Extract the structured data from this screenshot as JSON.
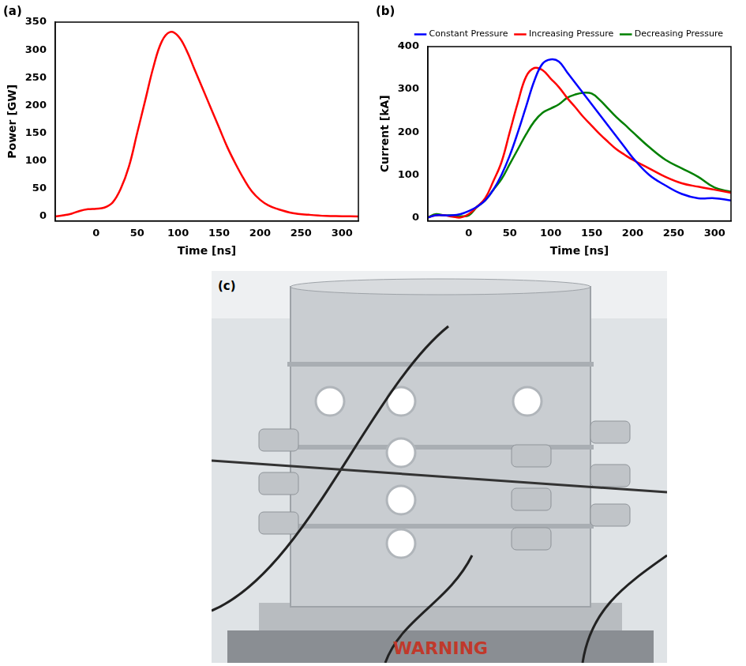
{
  "chart_data": [
    {
      "type": "line",
      "panel_label": "(a)",
      "x_label": "Time [ns]",
      "y_label": "Power [GW]",
      "x": [
        -50,
        -40,
        -30,
        -20,
        -10,
        0,
        10,
        20,
        30,
        40,
        50,
        60,
        70,
        80,
        90,
        100,
        110,
        120,
        130,
        140,
        150,
        160,
        170,
        180,
        190,
        200,
        210,
        220,
        240,
        260,
        280,
        300,
        320
      ],
      "series": [
        {
          "name": "Power",
          "color": "#ff0000",
          "values": [
            0,
            2,
            5,
            10,
            13,
            14,
            16,
            25,
            50,
            90,
            150,
            210,
            270,
            315,
            332,
            325,
            300,
            265,
            230,
            195,
            160,
            125,
            95,
            68,
            45,
            30,
            20,
            14,
            6,
            3,
            1,
            0.5,
            0
          ]
        }
      ],
      "xlim": [
        -50,
        320
      ],
      "xticks": [
        0,
        50,
        100,
        150,
        200,
        250,
        300
      ],
      "ylim": [
        -8,
        350
      ],
      "yticks": [
        0,
        50,
        100,
        150,
        200,
        250,
        300,
        350
      ],
      "grid": false
    },
    {
      "type": "line",
      "panel_label": "(b)",
      "x_label": "Time [ns]",
      "y_label": "Current [kA]",
      "x": [
        -50,
        -40,
        -30,
        -20,
        -10,
        0,
        10,
        20,
        30,
        40,
        50,
        60,
        70,
        80,
        90,
        100,
        110,
        120,
        130,
        140,
        150,
        160,
        170,
        180,
        190,
        200,
        220,
        240,
        260,
        280,
        300,
        320
      ],
      "series": [
        {
          "name": "Constant Pressure",
          "color": "#0000ff",
          "values": [
            0,
            5,
            5,
            5,
            8,
            15,
            25,
            40,
            65,
            100,
            145,
            200,
            260,
            320,
            360,
            370,
            365,
            340,
            315,
            290,
            265,
            240,
            215,
            190,
            165,
            140,
            100,
            75,
            55,
            45,
            45,
            40
          ]
        },
        {
          "name": "Increasing Pressure",
          "color": "#ff0000",
          "values": [
            0,
            5,
            5,
            2,
            0,
            8,
            25,
            45,
            85,
            130,
            200,
            270,
            330,
            350,
            345,
            325,
            305,
            280,
            258,
            235,
            215,
            195,
            177,
            160,
            147,
            135,
            115,
            95,
            80,
            72,
            65,
            58
          ]
        },
        {
          "name": "Decreasing Pressure",
          "color": "#008000",
          "values": [
            0,
            8,
            5,
            5,
            3,
            5,
            25,
            40,
            65,
            90,
            125,
            160,
            195,
            225,
            245,
            255,
            265,
            280,
            288,
            292,
            290,
            275,
            255,
            235,
            218,
            200,
            165,
            135,
            115,
            95,
            70,
            60
          ]
        }
      ],
      "xlim": [
        -50,
        320
      ],
      "xticks": [
        0,
        50,
        100,
        150,
        200,
        250,
        300
      ],
      "ylim": [
        -8,
        400
      ],
      "yticks": [
        0,
        100,
        200,
        300,
        400
      ],
      "grid": false,
      "legend": "top right"
    }
  ],
  "photo": {
    "panel_label": "(c)",
    "sign_text": "WARNING"
  }
}
